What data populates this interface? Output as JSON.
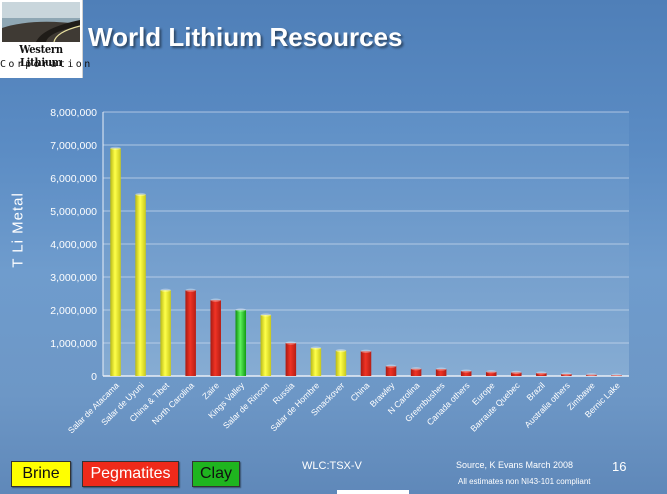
{
  "logo": {
    "line1": "Western Lithium",
    "line2": "Corporation"
  },
  "title": "World Lithium Resources",
  "chart_data": {
    "type": "bar",
    "title": "World Lithium Resources",
    "ylabel": "T  Li  Metal",
    "xlabel": "",
    "ylim": [
      0,
      8000000
    ],
    "ytick_values": [
      0,
      1000000,
      2000000,
      3000000,
      4000000,
      5000000,
      6000000,
      7000000,
      8000000
    ],
    "ytick_labels": [
      "0",
      "1,000,000",
      "2,000,000",
      "3,000,000",
      "4,000,000",
      "5,000,000",
      "6,000,000",
      "7,000,000",
      "8,000,000"
    ],
    "grid": true,
    "categories": [
      "Salar de Atacama",
      "Salar de Uyuni",
      "China & Tibet",
      "North Carolina",
      "Zaire",
      "Kings Valley",
      "Salar de Rincon",
      "Russia",
      "Salar de Hombre",
      "Smackover",
      "China",
      "Brawley",
      "N Carolina",
      "Greenbushes",
      "Canada others",
      "Europe",
      "Barraute Quebec",
      "Brazil",
      "Australia others",
      "Zimbawe",
      "Bernic Lake"
    ],
    "values": [
      6900000,
      5500000,
      2600000,
      2600000,
      2300000,
      2000000,
      1850000,
      1000000,
      850000,
      770000,
      750000,
      300000,
      220000,
      210000,
      150000,
      130000,
      110000,
      90000,
      60000,
      40000,
      25000
    ],
    "types": [
      "Brine",
      "Brine",
      "Brine",
      "Pegmatites",
      "Pegmatites",
      "Clay",
      "Brine",
      "Pegmatites",
      "Brine",
      "Brine",
      "Pegmatites",
      "Pegmatites",
      "Pegmatites",
      "Pegmatites",
      "Pegmatites",
      "Pegmatites",
      "Pegmatites",
      "Pegmatites",
      "Pegmatites",
      "Pegmatites",
      "Pegmatites"
    ],
    "colors": {
      "Brine": "#f2f22a",
      "Pegmatites": "#e52a1e",
      "Clay": "#1ec21e"
    },
    "legend_placement": "bottom-left"
  },
  "legend": [
    {
      "label": "Brine",
      "color": "#ffff00"
    },
    {
      "label": "Pegmatites",
      "color": "#ef2a1a"
    },
    {
      "label": "Clay",
      "color": "#1fb51f"
    }
  ],
  "footer": {
    "ticker": "WLC:TSX-V",
    "source": "Source, K Evans March 2008",
    "page": "16",
    "note": "All estimates non NI43-101 compliant"
  }
}
